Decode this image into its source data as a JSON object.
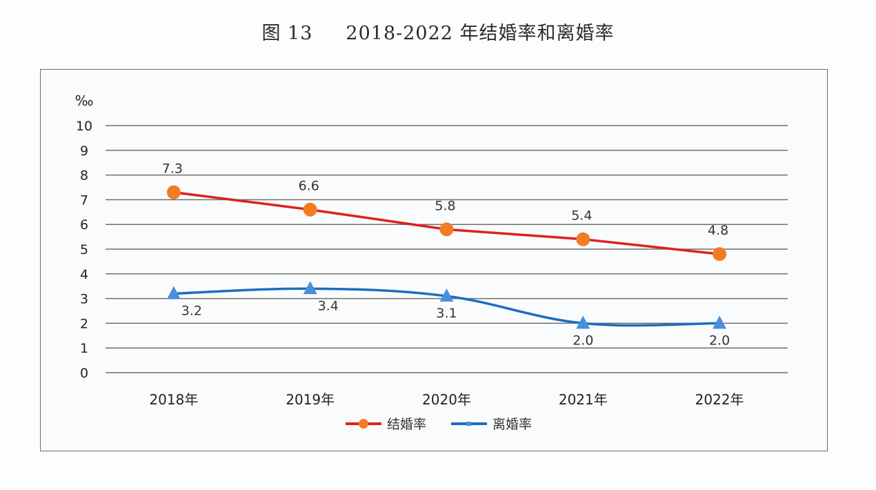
{
  "title": {
    "figure_label": "图 13",
    "text": "2018-2022 年结婚率和离婚率"
  },
  "chart_data": {
    "type": "line",
    "title": "2018-2022 年结婚率和离婚率",
    "figure_label": "图 13",
    "unit_label": "‰",
    "xlabel": "",
    "ylabel": "‰",
    "categories": [
      "2018年",
      "2019年",
      "2020年",
      "2021年",
      "2022年"
    ],
    "ylim": [
      0,
      10
    ],
    "yticks": [
      0,
      1,
      2,
      3,
      4,
      5,
      6,
      7,
      8,
      9,
      10
    ],
    "grid": true,
    "legend_position": "bottom",
    "series": [
      {
        "name": "结婚率",
        "values": [
          7.3,
          6.6,
          5.8,
          5.4,
          4.8
        ],
        "labels": [
          "7.3",
          "6.6",
          "5.8",
          "5.4",
          "4.8"
        ],
        "label_position": "above",
        "line_color": "#e0201e",
        "marker": "circle",
        "marker_color": "#f07d22",
        "smooth": false
      },
      {
        "name": "离婚率",
        "values": [
          3.2,
          3.4,
          3.1,
          2.0,
          2.0
        ],
        "labels": [
          "3.2",
          "3.4",
          "3.1",
          "2.0",
          "2.0"
        ],
        "label_position": "below",
        "line_color": "#1a6fc0",
        "marker": "triangle",
        "marker_color": "#4a8fdc",
        "smooth": true
      }
    ]
  }
}
